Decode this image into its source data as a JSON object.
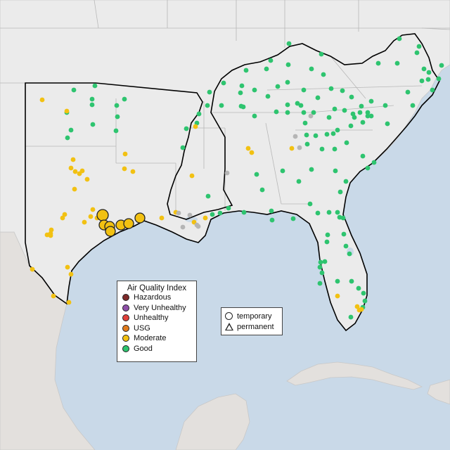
{
  "map": {
    "colors": {
      "water": "#c9d9e8",
      "land": "#ebebeb",
      "land_mexico": "#e3e0dd",
      "border": "#b8b8b8",
      "region_outline": "#000000"
    }
  },
  "legend_aqi": {
    "title": "Air Quality Index",
    "items": [
      {
        "label": "Hazardous",
        "color": "#7e2a2a"
      },
      {
        "label": "Very Unhealthy",
        "color": "#8e4fa8"
      },
      {
        "label": "Unhealthy",
        "color": "#e0413a"
      },
      {
        "label": "USG",
        "color": "#e07b1d"
      },
      {
        "label": "Moderate",
        "color": "#f2c112"
      },
      {
        "label": "Good",
        "color": "#2ec46f"
      }
    ]
  },
  "legend_type": {
    "items": [
      {
        "label": "temporary",
        "shape": "circle"
      },
      {
        "label": "permanent",
        "shape": "triangle"
      }
    ]
  },
  "stations": {
    "colors": {
      "good": "#2ec46f",
      "moderate": "#f2c112",
      "nodata": "#b5b5b5"
    }
  }
}
